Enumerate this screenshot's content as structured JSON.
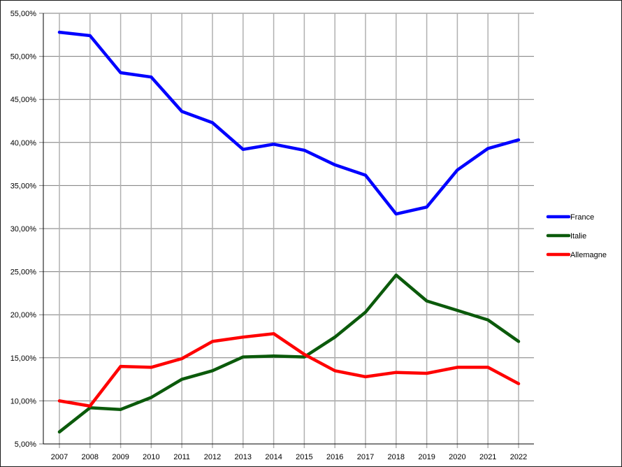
{
  "chart_data": {
    "type": "line",
    "title": "",
    "xlabel": "",
    "ylabel": "",
    "categories": [
      "2007",
      "2008",
      "2009",
      "2010",
      "2011",
      "2012",
      "2013",
      "2014",
      "2015",
      "2016",
      "2017",
      "2018",
      "2019",
      "2020",
      "2021",
      "2022"
    ],
    "ylim": [
      5,
      55
    ],
    "yticks": [
      5,
      10,
      15,
      20,
      25,
      30,
      35,
      40,
      45,
      50,
      55
    ],
    "ytick_labels": [
      "5,00%",
      "10,00%",
      "15,00%",
      "20,00%",
      "25,00%",
      "30,00%",
      "35,00%",
      "40,00%",
      "45,00%",
      "50,00%",
      "55,00%"
    ],
    "grid": true,
    "legend_position": "right",
    "series": [
      {
        "name": "France",
        "color": "#0000ff",
        "values": [
          52.8,
          52.4,
          48.1,
          47.6,
          43.6,
          42.3,
          39.2,
          39.8,
          39.1,
          37.4,
          36.2,
          31.7,
          32.5,
          36.8,
          39.3,
          40.3
        ]
      },
      {
        "name": "Italie",
        "color": "#0b5a0b",
        "values": [
          6.4,
          9.2,
          9.0,
          10.4,
          12.5,
          13.5,
          15.1,
          15.2,
          15.1,
          17.4,
          20.3,
          24.6,
          21.6,
          20.5,
          19.4,
          16.9
        ]
      },
      {
        "name": "Allemagne",
        "color": "#ff0000",
        "values": [
          10.0,
          9.4,
          14.0,
          13.9,
          14.9,
          16.9,
          17.4,
          17.8,
          15.4,
          13.5,
          12.8,
          13.3,
          13.2,
          13.9,
          13.9,
          12.0
        ]
      }
    ]
  }
}
